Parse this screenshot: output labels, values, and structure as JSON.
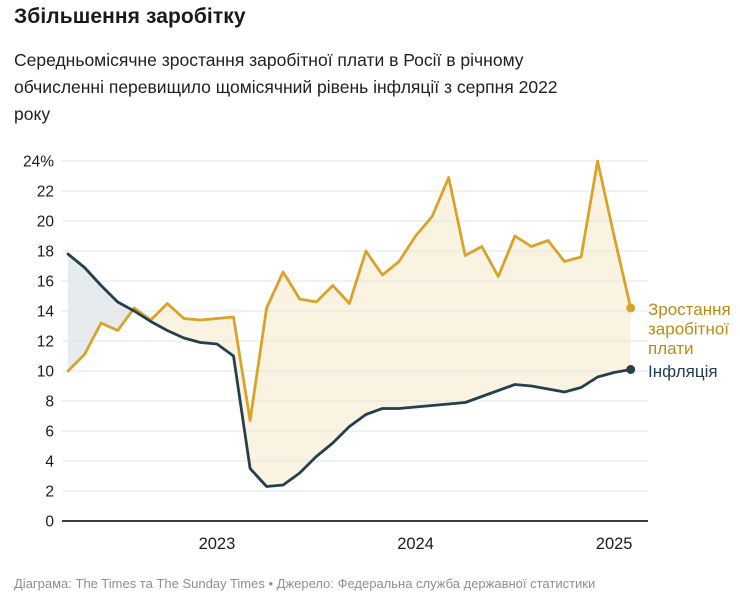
{
  "header": {
    "title": "Збільшення заробітку",
    "subtitle": "Середньомісячне зростання заробітної плати в Росії в річному\nобчисленні перевищило щомісячний рівень інфляції з серпня 2022\nроку"
  },
  "footer": {
    "credit": "Діаграма: The Times та The Sunday Times  •  Джерело: Федеральна служба державної статистики"
  },
  "chart_data": {
    "type": "line",
    "title": "Збільшення заробітку",
    "x": [
      "2022-04",
      "2022-05",
      "2022-06",
      "2022-07",
      "2022-08",
      "2022-09",
      "2022-10",
      "2022-11",
      "2022-12",
      "2023-01",
      "2023-02",
      "2023-03",
      "2023-04",
      "2023-05",
      "2023-06",
      "2023-07",
      "2023-08",
      "2023-09",
      "2023-10",
      "2023-11",
      "2023-12",
      "2024-01",
      "2024-02",
      "2024-03",
      "2024-04",
      "2024-05",
      "2024-06",
      "2024-07",
      "2024-08",
      "2024-09",
      "2024-10",
      "2024-11",
      "2024-12",
      "2025-01",
      "2025-02"
    ],
    "series": [
      {
        "name": "Зростання заробітної плати",
        "label_lines": [
          "Зростання",
          "заробітної",
          "плати"
        ],
        "color": "#D8A32A",
        "label_color": "#B78C13",
        "values": [
          10,
          11.1,
          13.2,
          12.7,
          14.2,
          13.4,
          14.5,
          13.5,
          13.4,
          13.5,
          13.6,
          6.7,
          14.2,
          16.6,
          14.8,
          14.6,
          15.7,
          14.5,
          18,
          16.4,
          17.3,
          19,
          20.3,
          22.9,
          17.7,
          18.3,
          16.3,
          19,
          18.3,
          18.7,
          17.3,
          17.6,
          24,
          19,
          14.2
        ]
      },
      {
        "name": "Інфляція",
        "label_lines": [
          "Інфляція"
        ],
        "color": "#24404F",
        "label_color": "#24404F",
        "values": [
          17.8,
          16.9,
          15.7,
          14.6,
          14,
          13.3,
          12.7,
          12.2,
          11.9,
          11.8,
          11,
          3.5,
          2.3,
          2.4,
          3.2,
          4.3,
          5.2,
          6.3,
          7.1,
          7.5,
          7.5,
          7.6,
          7.7,
          7.8,
          7.9,
          8.3,
          8.7,
          9.1,
          9,
          8.8,
          8.6,
          8.9,
          9.6,
          9.9,
          10.1
        ]
      }
    ],
    "ylim": [
      0,
      24
    ],
    "ytick_labels": [
      "0",
      "2",
      "4",
      "6",
      "8",
      "10",
      "12",
      "14",
      "16",
      "18",
      "20",
      "22",
      "24%"
    ],
    "xticks": [
      {
        "label": "2023",
        "month_index": 9
      },
      {
        "label": "2024",
        "month_index": 21
      },
      {
        "label": "2025",
        "month_index": 33
      }
    ],
    "grid": true,
    "gridline_color": "#E4E4E4",
    "axis_color": "#3D3D3D",
    "tick_label_color": "#1b1b1b",
    "fills": {
      "wage_above": "#FBF3E1",
      "inflation_above": "#E7EBEE"
    },
    "legend_position": "end-of-line-labels"
  }
}
